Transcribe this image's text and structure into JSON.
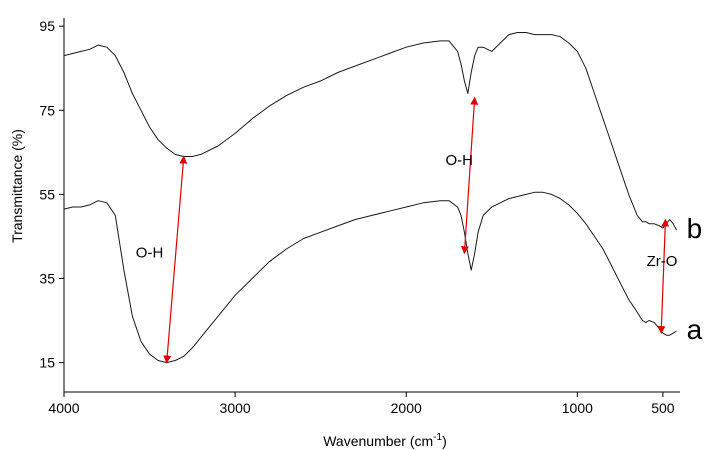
{
  "chart_data": {
    "type": "line",
    "title": "",
    "xlabel": "Wavenumber (cm",
    "xlabel_sup": "-1",
    "xlabel_tail": ")",
    "ylabel": "Transmittance (%)",
    "xlim": [
      4000,
      400
    ],
    "ylim": [
      8,
      96
    ],
    "x_reversed": true,
    "grid": false,
    "legend": "none",
    "xticks": [
      4000,
      3000,
      2000,
      1000,
      500
    ],
    "xtick_labels": [
      "4000",
      "3000",
      "2000",
      "1000",
      "500"
    ],
    "yticks": [
      15,
      35,
      55,
      75,
      95
    ],
    "ytick_labels": [
      "15",
      "35",
      "55",
      "75",
      "95"
    ],
    "series": [
      {
        "name": "a",
        "color": "#1a1a1a",
        "x": [
          4000,
          3950,
          3900,
          3850,
          3800,
          3750,
          3700,
          3650,
          3600,
          3550,
          3500,
          3450,
          3400,
          3350,
          3300,
          3250,
          3200,
          3100,
          3000,
          2900,
          2800,
          2700,
          2600,
          2500,
          2400,
          2300,
          2200,
          2100,
          2000,
          1900,
          1800,
          1750,
          1700,
          1680,
          1660,
          1640,
          1620,
          1600,
          1580,
          1550,
          1500,
          1450,
          1400,
          1350,
          1300,
          1250,
          1200,
          1150,
          1100,
          1050,
          1000,
          950,
          900,
          850,
          800,
          750,
          700,
          650,
          620,
          600,
          580,
          550,
          520,
          500,
          480,
          460,
          440,
          420
        ],
        "y": [
          51.5,
          52,
          52,
          52.5,
          53.5,
          53,
          50,
          37,
          26,
          20,
          17,
          15.5,
          15,
          15.5,
          16.5,
          18.5,
          21,
          26,
          31,
          35,
          39,
          42,
          44.5,
          46,
          47.5,
          49,
          50,
          51,
          52,
          53,
          53.5,
          53.5,
          52,
          50,
          46,
          41,
          37,
          41,
          46,
          50,
          52,
          53,
          54,
          54.5,
          55,
          55.5,
          55.5,
          55,
          54,
          52.5,
          50.5,
          48,
          45,
          42,
          38,
          34,
          30,
          27,
          25,
          24.5,
          25,
          24.5,
          23,
          22,
          21.5,
          21.5,
          22,
          22.5
        ]
      },
      {
        "name": "b",
        "color": "#1a1a1a",
        "x": [
          4000,
          3950,
          3900,
          3850,
          3800,
          3750,
          3700,
          3650,
          3600,
          3550,
          3500,
          3450,
          3400,
          3350,
          3300,
          3250,
          3200,
          3100,
          3000,
          2900,
          2800,
          2700,
          2600,
          2500,
          2400,
          2300,
          2200,
          2100,
          2000,
          1900,
          1800,
          1750,
          1700,
          1680,
          1660,
          1640,
          1620,
          1600,
          1580,
          1550,
          1500,
          1450,
          1400,
          1350,
          1300,
          1250,
          1200,
          1150,
          1100,
          1050,
          1000,
          950,
          900,
          850,
          800,
          750,
          700,
          650,
          620,
          600,
          580,
          550,
          520,
          500,
          480,
          460,
          440,
          420
        ],
        "y": [
          88,
          88.5,
          89,
          89.5,
          90.5,
          90,
          88,
          84,
          79,
          75,
          71,
          68,
          66,
          64.5,
          64,
          64,
          64.5,
          66.5,
          69.5,
          73,
          76,
          78.5,
          80.5,
          82,
          84,
          85.5,
          87,
          88.5,
          90,
          91,
          91.5,
          91.5,
          89,
          86,
          82,
          79,
          84,
          88,
          90,
          90,
          89,
          91,
          93,
          93.5,
          93.5,
          93,
          93,
          93,
          92.5,
          91,
          89,
          85,
          79,
          73,
          67,
          61,
          55,
          50,
          48.5,
          48.5,
          48,
          48,
          47.5,
          47,
          48,
          49,
          48,
          46.5
        ]
      }
    ],
    "series_labels": [
      "b",
      "a"
    ],
    "annotations": [
      {
        "text": "O-H",
        "x": 3500,
        "y": 40,
        "from": [
          3300,
          64
        ],
        "to": [
          3400,
          15
        ]
      },
      {
        "text": "O-H",
        "x": 1690,
        "y": 62,
        "from": [
          1600,
          78
        ],
        "to": [
          1660,
          41
        ]
      },
      {
        "text": "Zr-O",
        "x": 505,
        "y": 38,
        "from": [
          485,
          49
        ],
        "to": [
          510,
          22
        ]
      }
    ]
  }
}
